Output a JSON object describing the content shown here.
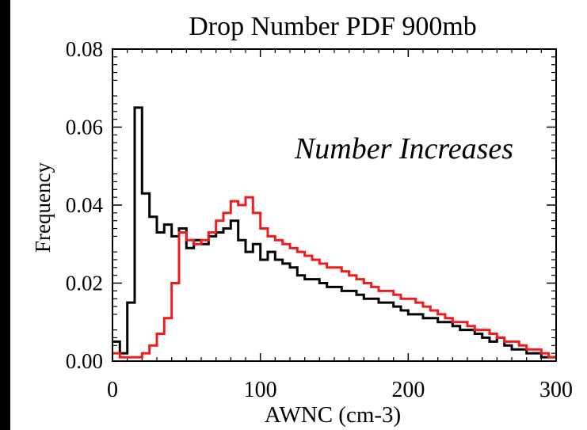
{
  "chart_data": {
    "type": "line",
    "title": "Drop Number PDF 900mb",
    "xlabel": "AWNC (cm-3)",
    "ylabel": "Frequency",
    "xlim": [
      0,
      300
    ],
    "ylim": [
      0,
      0.08
    ],
    "x_ticks": [
      "0",
      "100",
      "200",
      "300"
    ],
    "y_ticks": [
      "0.00",
      "0.02",
      "0.04",
      "0.06",
      "0.08"
    ],
    "annotation": "Number Increases",
    "grid": false,
    "bin_width": 5,
    "series": [
      {
        "color": "#000000",
        "step": "post",
        "x": [
          0,
          5,
          10,
          15,
          20,
          25,
          30,
          35,
          40,
          45,
          50,
          55,
          60,
          65,
          70,
          75,
          80,
          85,
          90,
          95,
          100,
          105,
          110,
          115,
          120,
          125,
          130,
          135,
          140,
          145,
          150,
          155,
          160,
          165,
          170,
          175,
          180,
          185,
          190,
          195,
          200,
          205,
          210,
          215,
          220,
          225,
          230,
          235,
          240,
          245,
          250,
          255,
          260,
          265,
          270,
          275,
          280,
          285,
          290,
          295
        ],
        "values": [
          0.005,
          0.002,
          0.015,
          0.065,
          0.043,
          0.037,
          0.033,
          0.035,
          0.032,
          0.034,
          0.029,
          0.031,
          0.03,
          0.032,
          0.033,
          0.034,
          0.036,
          0.031,
          0.028,
          0.03,
          0.026,
          0.028,
          0.026,
          0.025,
          0.024,
          0.022,
          0.021,
          0.021,
          0.02,
          0.019,
          0.019,
          0.018,
          0.018,
          0.017,
          0.016,
          0.016,
          0.015,
          0.015,
          0.014,
          0.013,
          0.012,
          0.012,
          0.011,
          0.011,
          0.01,
          0.01,
          0.009,
          0.008,
          0.008,
          0.007,
          0.006,
          0.005,
          0.006,
          0.004,
          0.003,
          0.003,
          0.002,
          0.002,
          0.001,
          0.001
        ]
      },
      {
        "color": "#ee1c1c",
        "step": "post",
        "x": [
          0,
          5,
          10,
          15,
          20,
          25,
          30,
          35,
          40,
          45,
          50,
          55,
          60,
          65,
          70,
          75,
          80,
          85,
          90,
          95,
          100,
          105,
          110,
          115,
          120,
          125,
          130,
          135,
          140,
          145,
          150,
          155,
          160,
          165,
          170,
          175,
          180,
          185,
          190,
          195,
          200,
          205,
          210,
          215,
          220,
          225,
          230,
          235,
          240,
          245,
          250,
          255,
          260,
          265,
          270,
          275,
          280,
          285,
          290,
          295
        ],
        "values": [
          0.002,
          0.001,
          0.001,
          0.001,
          0.002,
          0.004,
          0.007,
          0.011,
          0.02,
          0.033,
          0.031,
          0.03,
          0.031,
          0.033,
          0.036,
          0.038,
          0.041,
          0.04,
          0.042,
          0.038,
          0.034,
          0.032,
          0.031,
          0.03,
          0.029,
          0.028,
          0.027,
          0.026,
          0.025,
          0.024,
          0.024,
          0.023,
          0.022,
          0.021,
          0.02,
          0.019,
          0.018,
          0.018,
          0.017,
          0.016,
          0.016,
          0.015,
          0.014,
          0.013,
          0.012,
          0.011,
          0.01,
          0.01,
          0.009,
          0.008,
          0.008,
          0.007,
          0.006,
          0.005,
          0.005,
          0.004,
          0.003,
          0.003,
          0.002,
          0.001
        ]
      }
    ]
  }
}
